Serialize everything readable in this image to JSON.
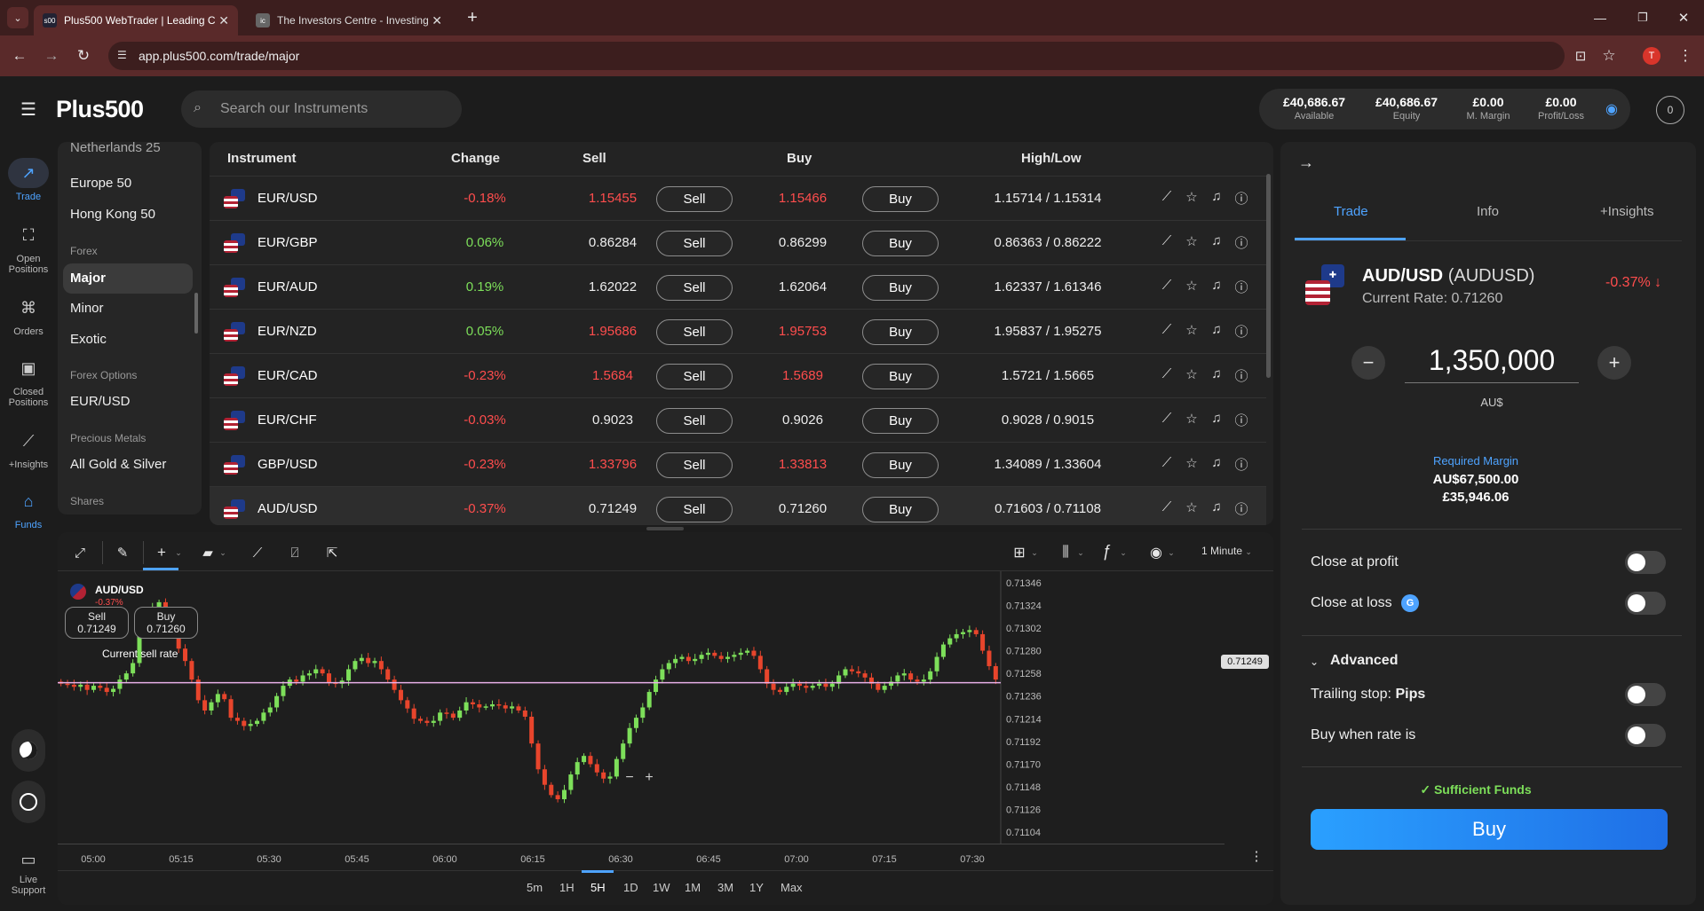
{
  "browser": {
    "tabs": [
      {
        "title": "Plus500 WebTrader | Leading C",
        "favicon": "s00"
      },
      {
        "title": "The Investors Centre - Investing",
        "favicon": "ic"
      }
    ],
    "url": "app.plus500.com/trade/major",
    "profile_initial": "T"
  },
  "header": {
    "logo": "Plus500",
    "search_placeholder": "Search our Instruments",
    "account": [
      {
        "value": "£40,686.67",
        "label": "Available"
      },
      {
        "value": "£40,686.67",
        "label": "Equity"
      },
      {
        "value": "£0.00",
        "label": "M. Margin"
      },
      {
        "value": "£0.00",
        "label": "Profit/Loss"
      }
    ],
    "avatar": "0"
  },
  "nav": [
    {
      "label": "Trade",
      "icon": "trade-icon"
    },
    {
      "label": "Open Positions",
      "icon": "open-positions-icon"
    },
    {
      "label": "Orders",
      "icon": "orders-icon"
    },
    {
      "label": "Closed Positions",
      "icon": "closed-positions-icon"
    },
    {
      "label": "+Insights",
      "icon": "insights-icon"
    },
    {
      "label": "Funds",
      "icon": "funds-icon"
    }
  ],
  "support_label": "Live Support",
  "categories": {
    "top_items": [
      "Netherlands 25",
      "Europe 50",
      "Hong Kong 50"
    ],
    "forex_group": "Forex",
    "forex_items": [
      "Major",
      "Minor",
      "Exotic"
    ],
    "options_group": "Forex Options",
    "options_items": [
      "EUR/USD"
    ],
    "metals_group": "Precious Metals",
    "metals_items": [
      "All Gold & Silver"
    ],
    "shares_group": "Shares"
  },
  "table": {
    "headers": {
      "instrument": "Instrument",
      "change": "Change",
      "sell": "Sell",
      "buy": "Buy",
      "highlow": "High/Low"
    },
    "sell_label": "Sell",
    "buy_label": "Buy",
    "rows": [
      {
        "instrument": "EUR/USD",
        "change": "-0.18%",
        "sell": "1.15455",
        "buy": "1.15466",
        "highlow": "1.15714 / 1.15314",
        "dir": "down"
      },
      {
        "instrument": "EUR/GBP",
        "change": "0.06%",
        "sell": "0.86284",
        "buy": "0.86299",
        "highlow": "0.86363 / 0.86222",
        "dir": "flat"
      },
      {
        "instrument": "EUR/AUD",
        "change": "0.19%",
        "sell": "1.62022",
        "buy": "1.62064",
        "highlow": "1.62337 / 1.61346",
        "dir": "flat"
      },
      {
        "instrument": "EUR/NZD",
        "change": "0.05%",
        "sell": "1.95686",
        "buy": "1.95753",
        "highlow": "1.95837 / 1.95275",
        "dir": "down"
      },
      {
        "instrument": "EUR/CAD",
        "change": "-0.23%",
        "sell": "1.5684",
        "buy": "1.5689",
        "highlow": "1.5721 / 1.5665",
        "dir": "down"
      },
      {
        "instrument": "EUR/CHF",
        "change": "-0.03%",
        "sell": "0.9023",
        "buy": "0.9026",
        "highlow": "0.9028 / 0.9015",
        "dir": "flat"
      },
      {
        "instrument": "GBP/USD",
        "change": "-0.23%",
        "sell": "1.33796",
        "buy": "1.33813",
        "highlow": "1.34089 / 1.33604",
        "dir": "down"
      },
      {
        "instrument": "AUD/USD",
        "change": "-0.37%",
        "sell": "0.71249",
        "buy": "0.71260",
        "highlow": "0.71603 / 0.71108",
        "dir": "flat"
      }
    ],
    "colors": {
      "up": "#7ddf5a",
      "down": "#ff4d4d",
      "neutral": "#eeeeee"
    }
  },
  "chart": {
    "instrument": "AUD/USD",
    "change": "-0.37%",
    "sell_label": "Sell",
    "sell_value": "0.71249",
    "buy_label": "Buy",
    "buy_value": "0.71260",
    "current_rate_label": "Current sell rate",
    "current_rate_value": "0.71249",
    "interval": "1 Minute",
    "y_ticks": [
      "0.71346",
      "0.71324",
      "0.71302",
      "0.71280",
      "0.71258",
      "0.71236",
      "0.71214",
      "0.71192",
      "0.71170",
      "0.71148",
      "0.71126",
      "0.71104"
    ],
    "x_ticks": [
      "05:00",
      "05:15",
      "05:30",
      "05:45",
      "06:00",
      "06:15",
      "06:30",
      "06:45",
      "07:00",
      "07:15",
      "07:30"
    ],
    "timeframes": [
      "5m",
      "1H",
      "5H",
      "1D",
      "1W",
      "1M",
      "3M",
      "1Y",
      "Max"
    ],
    "selected_timeframe": "5H",
    "up_color": "#7ddf5a",
    "down_color": "#e8452c"
  },
  "chart_data": {
    "type": "candlestick",
    "ylim": [
      0.71093,
      0.71357
    ],
    "xlabel": "",
    "ylabel": "",
    "reference_line": 0.71249,
    "close_series": [
      0.71248,
      0.71247,
      0.71245,
      0.71247,
      0.71242,
      0.71246,
      0.71244,
      0.7124,
      0.71243,
      0.71252,
      0.71258,
      0.71268,
      0.71303,
      0.71318,
      0.71322,
      0.71327,
      0.71312,
      0.713,
      0.71282,
      0.7127,
      0.71252,
      0.71232,
      0.71222,
      0.7123,
      0.71238,
      0.71233,
      0.71215,
      0.71212,
      0.71207,
      0.71209,
      0.71212,
      0.7122,
      0.71225,
      0.71236,
      0.71246,
      0.71252,
      0.7125,
      0.71256,
      0.71258,
      0.71262,
      0.71258,
      0.71249,
      0.71248,
      0.71251,
      0.71262,
      0.7127,
      0.71273,
      0.71268,
      0.7127,
      0.71262,
      0.71252,
      0.71242,
      0.71232,
      0.71224,
      0.71214,
      0.71212,
      0.7121,
      0.71212,
      0.7122,
      0.71219,
      0.71215,
      0.71222,
      0.7123,
      0.71228,
      0.71225,
      0.71226,
      0.71228,
      0.71227,
      0.71224,
      0.71226,
      0.71222,
      0.71216,
      0.7119,
      0.71165,
      0.7115,
      0.7114,
      0.71136,
      0.71145,
      0.7116,
      0.71172,
      0.71178,
      0.7117,
      0.71162,
      0.71156,
      0.71158,
      0.71175,
      0.7119,
      0.71205,
      0.71215,
      0.71225,
      0.7124,
      0.71252,
      0.71262,
      0.71268,
      0.71272,
      0.71274,
      0.7127,
      0.71272,
      0.71276,
      0.71278,
      0.71275,
      0.71272,
      0.71274,
      0.71276,
      0.71278,
      0.7128,
      0.71275,
      0.71262,
      0.71248,
      0.71242,
      0.7124,
      0.71245,
      0.71248,
      0.71246,
      0.71244,
      0.71246,
      0.71248,
      0.71245,
      0.71248,
      0.71256,
      0.71262,
      0.7126,
      0.71258,
      0.71254,
      0.71248,
      0.71242,
      0.71246,
      0.7125,
      0.71256,
      0.71258,
      0.71252,
      0.7125,
      0.71252,
      0.7126,
      0.71274,
      0.71286,
      0.71292,
      0.71296,
      0.71298,
      0.713,
      0.71296,
      0.7128,
      0.71265,
      0.71252
    ]
  },
  "trade_panel": {
    "tabs": [
      "Trade",
      "Info",
      "+Insights"
    ],
    "selected_tab": "Trade",
    "instrument": "AUD/USD",
    "instrument_code": "(AUDUSD)",
    "current_rate_label": "Current Rate:",
    "current_rate": "0.71260",
    "change": "-0.37%",
    "amount": "1,350,000",
    "currency": "AU$",
    "required_margin_label": "Required Margin",
    "required_margin_aud": "AU$67,500.00",
    "required_margin_gbp": "£35,946.06",
    "close_at_profit": "Close at profit",
    "close_at_loss": "Close at loss",
    "loss_badge": "G",
    "advanced": "Advanced",
    "trailing_stop": "Trailing stop:",
    "trailing_unit": "Pips",
    "buy_when": "Buy when rate is",
    "funds_status": "Sufficient Funds",
    "buy_button": "Buy",
    "accent": "#4ea3ff"
  }
}
